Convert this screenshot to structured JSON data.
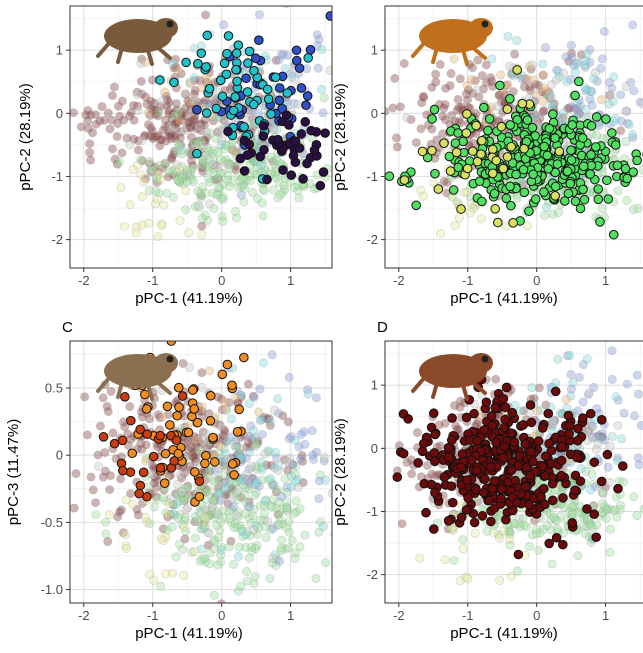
{
  "colors": {
    "bg_palette": [
      "#8b4a4a",
      "#8aa0d8",
      "#9fe0a0",
      "#86d8d8",
      "#e8e8a0",
      "#e8b878",
      "#c8c8c8"
    ],
    "highlight": [
      "#3050c8",
      "#22c0c8",
      "#2a1040",
      "#50e060",
      "#d8e060",
      "#f08c20",
      "#c83c10",
      "#6a0a0a"
    ]
  },
  "chart_data": [
    {
      "type": "scatter",
      "panel": "A",
      "label": "",
      "xlabel": "pPC-1 (41.19%)",
      "ylabel": "pPC-2 (28.19%)",
      "xlim": [
        -2.2,
        1.6
      ],
      "ylim": [
        -2.45,
        1.7
      ],
      "xticks": [
        "-2",
        "-1",
        "0",
        "1"
      ],
      "yticks": [
        "-2",
        "-1",
        "0",
        "1"
      ],
      "grid": true,
      "image_icon": "frog-photo-brown",
      "highlight_groups": [
        {
          "color_index": 0,
          "n": 40,
          "cx": 0.65,
          "cy": 0.45,
          "sx": 0.4,
          "sy": 0.55,
          "seed": 11
        },
        {
          "color_index": 1,
          "n": 55,
          "cx": 0.3,
          "cy": 0.35,
          "sx": 0.45,
          "sy": 0.45,
          "seed": 12
        },
        {
          "color_index": 2,
          "n": 45,
          "cx": 0.9,
          "cy": -0.55,
          "sx": 0.35,
          "sy": 0.25,
          "seed": 13
        }
      ]
    },
    {
      "type": "scatter",
      "panel": "B",
      "label": "",
      "xlabel": "pPC-1 (41.19%)",
      "ylabel": "pPC-2 (28.19%)",
      "xlim": [
        -2.2,
        1.6
      ],
      "ylim": [
        -2.45,
        1.7
      ],
      "xticks": [
        "-2",
        "-1",
        "0",
        "1"
      ],
      "yticks": [
        "-2",
        "-1",
        "0",
        "1"
      ],
      "grid": true,
      "image_icon": "frog-photo-orange",
      "highlight_groups": [
        {
          "color_index": 3,
          "n": 330,
          "cx": 0.05,
          "cy": -0.75,
          "sx": 0.75,
          "sy": 0.38,
          "seed": 21
        },
        {
          "color_index": 4,
          "n": 35,
          "cx": -0.9,
          "cy": -0.7,
          "sx": 0.55,
          "sy": 0.55,
          "seed": 22
        }
      ]
    },
    {
      "type": "scatter",
      "panel": "C",
      "label": "C",
      "xlabel": "pPC-1 (41.19%)",
      "ylabel": "pPC-3 (11.47%)",
      "xlim": [
        -2.2,
        1.6
      ],
      "ylim": [
        -1.1,
        0.85
      ],
      "xticks": [
        "-2",
        "-1",
        "0",
        "1"
      ],
      "yticks": [
        "-1.0",
        "-0.5",
        "0",
        "0.5"
      ],
      "grid": true,
      "image_icon": "frog-photo-toad",
      "highlight_groups": [
        {
          "color_index": 5,
          "n": 60,
          "cx": -0.55,
          "cy": 0.2,
          "sx": 0.5,
          "sy": 0.3,
          "seed": 31
        },
        {
          "color_index": 6,
          "n": 25,
          "cx": -1.05,
          "cy": 0.05,
          "sx": 0.45,
          "sy": 0.2,
          "seed": 32
        }
      ]
    },
    {
      "type": "scatter",
      "panel": "D",
      "label": "D",
      "xlabel": "pPC-1 (41.19%)",
      "ylabel": "pPC-2 (28.19%)",
      "xlim": [
        -2.2,
        1.6
      ],
      "ylim": [
        -2.45,
        1.7
      ],
      "xticks": [
        "-2",
        "-1",
        "0",
        "1"
      ],
      "yticks": [
        "-2",
        "-1",
        "0",
        "1"
      ],
      "grid": true,
      "image_icon": "frog-photo-reddish",
      "highlight_groups": [
        {
          "color_index": 7,
          "n": 380,
          "cx": -0.45,
          "cy": -0.25,
          "sx": 0.65,
          "sy": 0.5,
          "seed": 41
        }
      ]
    }
  ]
}
